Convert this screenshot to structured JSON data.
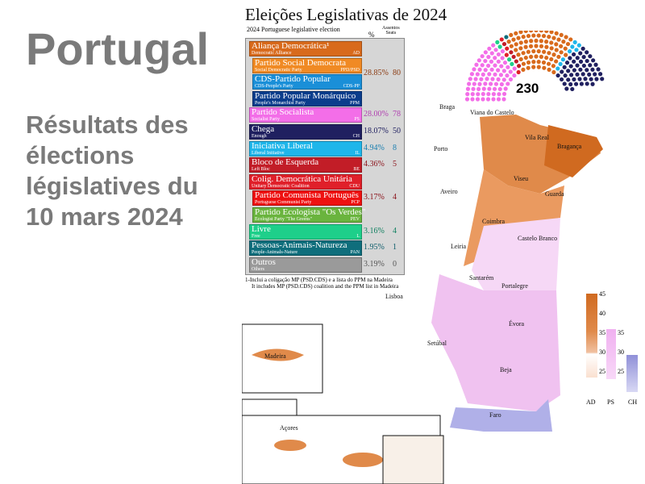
{
  "slide": {
    "title": "Portugal",
    "subtitle": "Résultats des élections législatives du 10 mars 2024"
  },
  "figure": {
    "title": "Eleições Legislativas de 2024",
    "subtitle": "2024 Portuguese legislative election",
    "col_pct": "%",
    "col_seats_pt": "Assentos",
    "col_seats_en": "Seats",
    "total_seats": "230",
    "note_pt": "1-Inclui a coligação MP (PSD.CDS) e a lista do PPM na Madeira",
    "note_en": "It includes MP (PSD.CDS) coalition and the PPM list in Madeira"
  },
  "parties": [
    {
      "name": "Aliança Democrática¹",
      "en": "Democratic Alliance",
      "abbr": "AD",
      "color": "#d86a1c"
    },
    {
      "name": "Partido Social Democrata",
      "en": "Social Democratic Party",
      "abbr": "PPD/PSD",
      "color": "#f08a24"
    },
    {
      "name": "CDS-Partido Popular",
      "en": "CDS-People's Party",
      "abbr": "CDS-PP",
      "color": "#1a8fd8"
    },
    {
      "name": "Partido Popular Monárquico",
      "en": "People's Monarchist Party",
      "abbr": "PPM",
      "color": "#0b3d8c"
    },
    {
      "name": "Partido Socialista",
      "en": "Socialist Party",
      "abbr": "PS",
      "color": "#f36ee8"
    },
    {
      "name": "Chega",
      "en": "Enough",
      "abbr": "CH",
      "color": "#202060"
    },
    {
      "name": "Iniciativa Liberal",
      "en": "Liberal Initiative",
      "abbr": "IL",
      "color": "#1fb6ea"
    },
    {
      "name": "Bloco de Esquerda",
      "en": "Left Bloc",
      "abbr": "BE",
      "color": "#c21d27"
    },
    {
      "name": "Colig. Democrática Unitária",
      "en": "Unitary Democratic Coalition",
      "abbr": "CDU",
      "color": "#e0202a"
    },
    {
      "name": "Partido Comunista Português",
      "en": "Portuguese Communist Party",
      "abbr": "PCP",
      "color": "#ee1111"
    },
    {
      "name": "Partido Ecologista \"Os Verdes\"",
      "en": "Ecologist Party \"The Greens\"",
      "abbr": "PEV",
      "color": "#6ab43e"
    },
    {
      "name": "Livre",
      "en": "Free",
      "abbr": "L",
      "color": "#1ecf8a"
    },
    {
      "name": "Pessoas-Animais-Natureza",
      "en": "People-Animals-Nature",
      "abbr": "PAN",
      "color": "#0f6e7c"
    },
    {
      "name": "Outros",
      "en": "Others",
      "abbr": "",
      "color": "#9a9a9a"
    }
  ],
  "results": [
    {
      "pct": "28.85%",
      "seats": "80",
      "color": "#8a3a10"
    },
    {
      "pct": "28.00%",
      "seats": "78",
      "color": "#b040b0"
    },
    {
      "pct": "18.07%",
      "seats": "50",
      "color": "#202060"
    },
    {
      "pct": "4.94%",
      "seats": "8",
      "color": "#1a7fb0"
    },
    {
      "pct": "4.36%",
      "seats": "5",
      "color": "#8a1018"
    },
    {
      "pct": "3.17%",
      "seats": "4",
      "color": "#8a1018"
    },
    {
      "pct": "3.16%",
      "seats": "4",
      "color": "#108060"
    },
    {
      "pct": "1.95%",
      "seats": "1",
      "color": "#0f5e6c"
    },
    {
      "pct": "3.19%",
      "seats": "0",
      "color": "#555555"
    }
  ],
  "districts": [
    "Braga",
    "Viana do Castelo",
    "Vila Real",
    "Bragança",
    "Porto",
    "Viseu",
    "Guarda",
    "Aveiro",
    "Coimbra",
    "Castelo Branco",
    "Leiria",
    "Santarém",
    "Portalegre",
    "Lisboa",
    "Évora",
    "Setúbal",
    "Beja",
    "Faro",
    "Madeira",
    "Açores"
  ],
  "scale": {
    "ad_ticks": [
      "45",
      "40",
      "35",
      "30",
      "25"
    ],
    "ps_ticks": [
      "35",
      "30",
      "25"
    ],
    "labels": [
      "AD",
      "PS",
      "CH"
    ]
  }
}
